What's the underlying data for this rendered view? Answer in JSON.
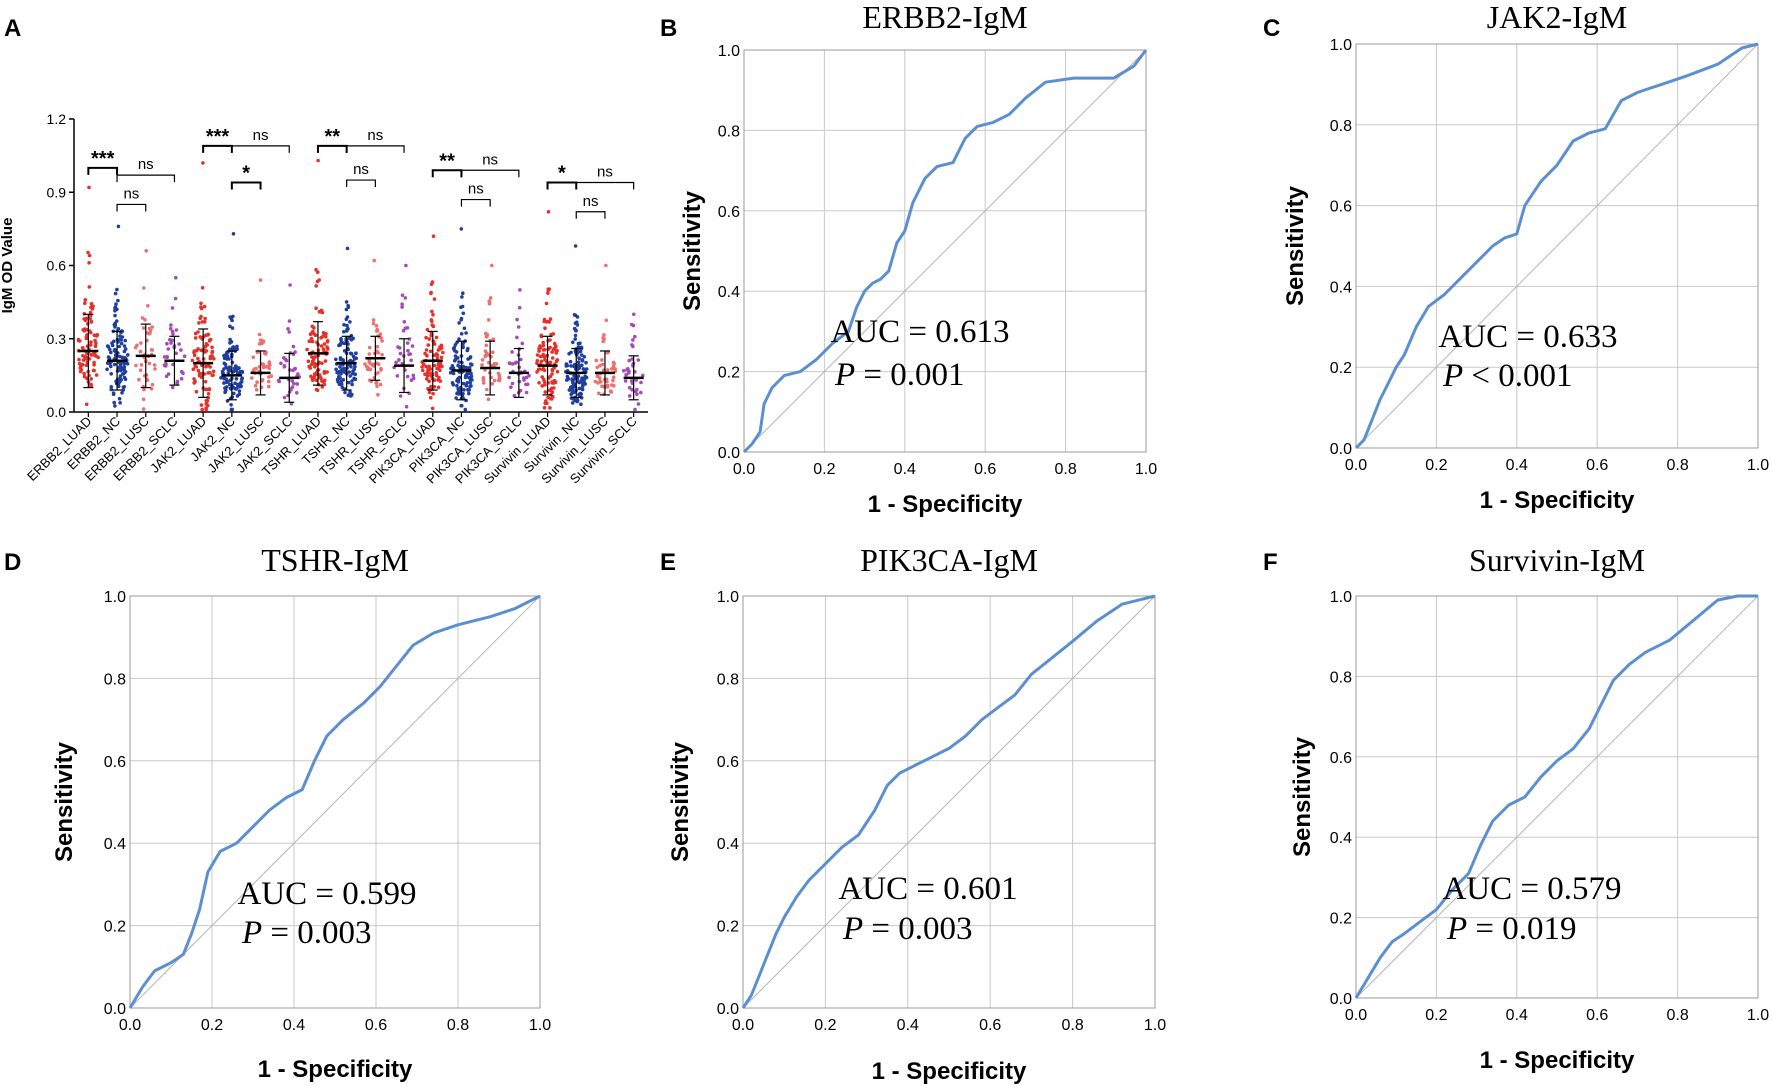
{
  "chart_data": [
    {
      "panel": "A",
      "type": "scatter",
      "ylabel": "IgM OD Value",
      "ylim": [
        0,
        1.2
      ],
      "yticks": [
        "0.0",
        "0.3",
        "0.6",
        "0.9",
        "1.2"
      ],
      "categories": [
        "ERBB2_LUAD",
        "ERBB2_NC",
        "ERBB2_LUSC",
        "ERBB2_SCLC",
        "JAK2_LUAD",
        "JAK2_NC",
        "JAK2_LUSC",
        "JAK2_SCLC",
        "TSHR_LUAD",
        "TSHR_NC",
        "TSHR_LUSC",
        "TSHR_SCLC",
        "PIK3CA_LUAD",
        "PIK3CA_NC",
        "PIK3CA_LUSC",
        "PIK3CA_SCLC",
        "Survivin_LUAD",
        "Survivin_NC",
        "Survivin_LUSC",
        "Survivin_SCLC"
      ],
      "groups": [
        {
          "mean": 0.25,
          "sd": 0.15,
          "max": 0.92,
          "n": 90,
          "color": "#e8302a"
        },
        {
          "mean": 0.21,
          "sd": 0.12,
          "max": 0.76,
          "n": 110,
          "color": "#1f3f9e"
        },
        {
          "mean": 0.23,
          "sd": 0.13,
          "max": 0.66,
          "n": 45,
          "color": "#ee6f6f"
        },
        {
          "mean": 0.21,
          "sd": 0.1,
          "max": 0.55,
          "n": 35,
          "color": "#a44bb5"
        },
        {
          "mean": 0.2,
          "sd": 0.14,
          "max": 1.02,
          "n": 90,
          "color": "#e8302a"
        },
        {
          "mean": 0.15,
          "sd": 0.1,
          "max": 0.73,
          "n": 110,
          "color": "#1f3f9e"
        },
        {
          "mean": 0.16,
          "sd": 0.09,
          "max": 0.54,
          "n": 45,
          "color": "#ee6f6f"
        },
        {
          "mean": 0.14,
          "sd": 0.1,
          "max": 0.52,
          "n": 35,
          "color": "#a44bb5"
        },
        {
          "mean": 0.24,
          "sd": 0.13,
          "max": 1.03,
          "n": 90,
          "color": "#e8302a"
        },
        {
          "mean": 0.2,
          "sd": 0.11,
          "max": 0.67,
          "n": 110,
          "color": "#1f3f9e"
        },
        {
          "mean": 0.22,
          "sd": 0.09,
          "max": 0.62,
          "n": 45,
          "color": "#ee6f6f"
        },
        {
          "mean": 0.19,
          "sd": 0.11,
          "max": 0.6,
          "n": 35,
          "color": "#a44bb5"
        },
        {
          "mean": 0.21,
          "sd": 0.12,
          "max": 0.72,
          "n": 90,
          "color": "#e8302a"
        },
        {
          "mean": 0.17,
          "sd": 0.12,
          "max": 0.75,
          "n": 110,
          "color": "#1f3f9e"
        },
        {
          "mean": 0.18,
          "sd": 0.11,
          "max": 0.6,
          "n": 45,
          "color": "#ee6f6f"
        },
        {
          "mean": 0.16,
          "sd": 0.1,
          "max": 0.5,
          "n": 35,
          "color": "#a44bb5"
        },
        {
          "mean": 0.19,
          "sd": 0.12,
          "max": 0.82,
          "n": 100,
          "color": "#e8302a"
        },
        {
          "mean": 0.16,
          "sd": 0.1,
          "max": 0.68,
          "n": 120,
          "color": "#1f3f9e"
        },
        {
          "mean": 0.16,
          "sd": 0.09,
          "max": 0.6,
          "n": 45,
          "color": "#ee6f6f"
        },
        {
          "mean": 0.14,
          "sd": 0.09,
          "max": 0.4,
          "n": 35,
          "color": "#a44bb5"
        }
      ],
      "significance": [
        {
          "from": 0,
          "to": 1,
          "y": 1.0,
          "label": "***"
        },
        {
          "from": 1,
          "to": 2,
          "y": 0.85,
          "label": "ns"
        },
        {
          "from": 1,
          "to": 3,
          "y": 0.97,
          "label": "ns"
        },
        {
          "from": 4,
          "to": 5,
          "y": 1.09,
          "label": "***"
        },
        {
          "from": 5,
          "to": 6,
          "y": 0.94,
          "label": "*"
        },
        {
          "from": 5,
          "to": 7,
          "y": 1.09,
          "label": "ns"
        },
        {
          "from": 8,
          "to": 9,
          "y": 1.09,
          "label": "**"
        },
        {
          "from": 9,
          "to": 10,
          "y": 0.95,
          "label": "ns"
        },
        {
          "from": 9,
          "to": 11,
          "y": 1.09,
          "label": "ns"
        },
        {
          "from": 12,
          "to": 13,
          "y": 0.99,
          "label": "**"
        },
        {
          "from": 13,
          "to": 14,
          "y": 0.87,
          "label": "ns"
        },
        {
          "from": 13,
          "to": 15,
          "y": 0.99,
          "label": "ns"
        },
        {
          "from": 16,
          "to": 17,
          "y": 0.94,
          "label": "*"
        },
        {
          "from": 17,
          "to": 18,
          "y": 0.82,
          "label": "ns"
        },
        {
          "from": 17,
          "to": 19,
          "y": 0.94,
          "label": "ns"
        }
      ]
    },
    {
      "panel": "B",
      "type": "line",
      "title": "ERBB2-IgM",
      "xlabel": "1 - Specificity",
      "ylabel": "Sensitivity",
      "auc_text": "AUC = 0.613",
      "p_label": "P",
      "p_text": " = 0.001",
      "xticks": [
        "0.0",
        "0.2",
        "0.4",
        "0.6",
        "0.8",
        "1.0"
      ],
      "yticks": [
        "0.0",
        "0.2",
        "0.4",
        "0.6",
        "0.8",
        "1.0"
      ],
      "roc": [
        [
          0,
          0
        ],
        [
          0.02,
          0.02
        ],
        [
          0.04,
          0.05
        ],
        [
          0.05,
          0.12
        ],
        [
          0.07,
          0.16
        ],
        [
          0.1,
          0.19
        ],
        [
          0.14,
          0.2
        ],
        [
          0.18,
          0.23
        ],
        [
          0.22,
          0.27
        ],
        [
          0.26,
          0.3
        ],
        [
          0.28,
          0.36
        ],
        [
          0.3,
          0.4
        ],
        [
          0.32,
          0.42
        ],
        [
          0.34,
          0.43
        ],
        [
          0.36,
          0.45
        ],
        [
          0.38,
          0.52
        ],
        [
          0.4,
          0.55
        ],
        [
          0.42,
          0.62
        ],
        [
          0.45,
          0.68
        ],
        [
          0.48,
          0.71
        ],
        [
          0.52,
          0.72
        ],
        [
          0.55,
          0.78
        ],
        [
          0.58,
          0.81
        ],
        [
          0.62,
          0.82
        ],
        [
          0.66,
          0.84
        ],
        [
          0.7,
          0.88
        ],
        [
          0.75,
          0.92
        ],
        [
          0.82,
          0.93
        ],
        [
          0.92,
          0.93
        ],
        [
          0.97,
          0.96
        ],
        [
          1,
          1
        ]
      ]
    },
    {
      "panel": "C",
      "type": "line",
      "title": "JAK2-IgM",
      "xlabel": "1 - Specificity",
      "ylabel": "Sensitivity",
      "auc_text": "AUC = 0.633",
      "p_label": "P",
      "p_text": " < 0.001",
      "xticks": [
        "0.0",
        "0.2",
        "0.4",
        "0.6",
        "0.8",
        "1.0"
      ],
      "yticks": [
        "0.0",
        "0.2",
        "0.4",
        "0.6",
        "0.8",
        "1.0"
      ],
      "roc": [
        [
          0,
          0
        ],
        [
          0.02,
          0.02
        ],
        [
          0.04,
          0.07
        ],
        [
          0.06,
          0.12
        ],
        [
          0.08,
          0.16
        ],
        [
          0.1,
          0.2
        ],
        [
          0.12,
          0.23
        ],
        [
          0.15,
          0.3
        ],
        [
          0.18,
          0.35
        ],
        [
          0.22,
          0.38
        ],
        [
          0.26,
          0.42
        ],
        [
          0.3,
          0.46
        ],
        [
          0.34,
          0.5
        ],
        [
          0.37,
          0.52
        ],
        [
          0.4,
          0.53
        ],
        [
          0.42,
          0.6
        ],
        [
          0.46,
          0.66
        ],
        [
          0.5,
          0.7
        ],
        [
          0.54,
          0.76
        ],
        [
          0.58,
          0.78
        ],
        [
          0.62,
          0.79
        ],
        [
          0.66,
          0.86
        ],
        [
          0.7,
          0.88
        ],
        [
          0.76,
          0.9
        ],
        [
          0.82,
          0.92
        ],
        [
          0.9,
          0.95
        ],
        [
          0.96,
          0.99
        ],
        [
          1,
          1
        ]
      ]
    },
    {
      "panel": "D",
      "type": "line",
      "title": "TSHR-IgM",
      "xlabel": "1 - Specificity",
      "ylabel": "Sensitivity",
      "auc_text": "AUC = 0.599",
      "p_label": "P",
      "p_text": " = 0.003",
      "xticks": [
        "0.0",
        "0.2",
        "0.4",
        "0.6",
        "0.8",
        "1.0"
      ],
      "yticks": [
        "0.0",
        "0.2",
        "0.4",
        "0.6",
        "0.8",
        "1.0"
      ],
      "roc": [
        [
          0,
          0
        ],
        [
          0.03,
          0.05
        ],
        [
          0.06,
          0.09
        ],
        [
          0.1,
          0.11
        ],
        [
          0.13,
          0.13
        ],
        [
          0.15,
          0.18
        ],
        [
          0.17,
          0.24
        ],
        [
          0.19,
          0.33
        ],
        [
          0.22,
          0.38
        ],
        [
          0.26,
          0.4
        ],
        [
          0.3,
          0.44
        ],
        [
          0.34,
          0.48
        ],
        [
          0.38,
          0.51
        ],
        [
          0.42,
          0.53
        ],
        [
          0.45,
          0.6
        ],
        [
          0.48,
          0.66
        ],
        [
          0.52,
          0.7
        ],
        [
          0.57,
          0.74
        ],
        [
          0.61,
          0.78
        ],
        [
          0.65,
          0.83
        ],
        [
          0.69,
          0.88
        ],
        [
          0.74,
          0.91
        ],
        [
          0.8,
          0.93
        ],
        [
          0.88,
          0.95
        ],
        [
          0.94,
          0.97
        ],
        [
          1,
          1
        ]
      ]
    },
    {
      "panel": "E",
      "type": "line",
      "title": "PIK3CA-IgM",
      "xlabel": "1 - Specificity",
      "ylabel": "Sensitivity",
      "auc_text": "AUC = 0.601",
      "p_label": "P",
      "p_text": " = 0.003",
      "xticks": [
        "0.0",
        "0.2",
        "0.4",
        "0.6",
        "0.8",
        "1.0"
      ],
      "yticks": [
        "0.0",
        "0.2",
        "0.4",
        "0.6",
        "0.8",
        "1.0"
      ],
      "roc": [
        [
          0,
          0
        ],
        [
          0.02,
          0.03
        ],
        [
          0.04,
          0.08
        ],
        [
          0.06,
          0.13
        ],
        [
          0.08,
          0.18
        ],
        [
          0.1,
          0.22
        ],
        [
          0.13,
          0.27
        ],
        [
          0.16,
          0.31
        ],
        [
          0.2,
          0.35
        ],
        [
          0.24,
          0.39
        ],
        [
          0.28,
          0.42
        ],
        [
          0.32,
          0.48
        ],
        [
          0.35,
          0.54
        ],
        [
          0.38,
          0.57
        ],
        [
          0.42,
          0.59
        ],
        [
          0.46,
          0.61
        ],
        [
          0.5,
          0.63
        ],
        [
          0.54,
          0.66
        ],
        [
          0.58,
          0.7
        ],
        [
          0.62,
          0.73
        ],
        [
          0.66,
          0.76
        ],
        [
          0.7,
          0.81
        ],
        [
          0.75,
          0.85
        ],
        [
          0.8,
          0.89
        ],
        [
          0.86,
          0.94
        ],
        [
          0.92,
          0.98
        ],
        [
          1,
          1
        ]
      ]
    },
    {
      "panel": "F",
      "type": "line",
      "title": "Survivin-IgM",
      "xlabel": "1 - Specificity",
      "ylabel": "Sensitivity",
      "auc_text": "AUC = 0.579",
      "p_label": "P",
      "p_text": " = 0.019",
      "xticks": [
        "0.0",
        "0.2",
        "0.4",
        "0.6",
        "0.8",
        "1.0"
      ],
      "yticks": [
        "0.0",
        "0.2",
        "0.4",
        "0.6",
        "0.8",
        "1.0"
      ],
      "roc": [
        [
          0,
          0
        ],
        [
          0.03,
          0.05
        ],
        [
          0.06,
          0.1
        ],
        [
          0.09,
          0.14
        ],
        [
          0.12,
          0.16
        ],
        [
          0.16,
          0.19
        ],
        [
          0.2,
          0.22
        ],
        [
          0.24,
          0.27
        ],
        [
          0.28,
          0.31
        ],
        [
          0.31,
          0.38
        ],
        [
          0.34,
          0.44
        ],
        [
          0.38,
          0.48
        ],
        [
          0.42,
          0.5
        ],
        [
          0.46,
          0.55
        ],
        [
          0.5,
          0.59
        ],
        [
          0.54,
          0.62
        ],
        [
          0.58,
          0.67
        ],
        [
          0.61,
          0.73
        ],
        [
          0.64,
          0.79
        ],
        [
          0.68,
          0.83
        ],
        [
          0.72,
          0.86
        ],
        [
          0.78,
          0.89
        ],
        [
          0.84,
          0.94
        ],
        [
          0.9,
          0.99
        ],
        [
          0.95,
          1
        ],
        [
          1,
          1
        ]
      ]
    }
  ]
}
